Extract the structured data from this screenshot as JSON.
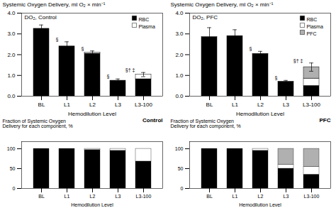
{
  "chart_data": [
    {
      "type": "bar",
      "stacked": true,
      "title": "DO₂, Control",
      "xlabel": "Hemodilution Level",
      "ylabel": "Systemic Oxygen Delivery, ml O₂ × min⁻¹",
      "categories": [
        "BL",
        "L1",
        "L2",
        "L3",
        "L3-100"
      ],
      "series": [
        {
          "name": "RBC",
          "color": "#000000",
          "values": [
            3.25,
            2.4,
            2.05,
            0.75,
            0.82
          ]
        },
        {
          "name": "Plasma",
          "color": "#ffffff",
          "values": [
            0.0,
            0.0,
            0.05,
            0.0,
            0.22
          ]
        }
      ],
      "errors": [
        0.18,
        0.22,
        0.08,
        0.08,
        0.1
      ],
      "annotations": [
        {
          "category": "L1",
          "text": "§"
        },
        {
          "category": "L2",
          "text": "§"
        },
        {
          "category": "L3",
          "text": "§"
        },
        {
          "category": "L3-100",
          "text": "§† ‡"
        }
      ],
      "ylim": [
        0.0,
        4.0
      ],
      "yticks": [
        {
          "value": 0.0,
          "label": "0.0"
        },
        {
          "value": 1.0,
          "label": "1.0"
        },
        {
          "value": 2.0,
          "label": "2.0"
        },
        {
          "value": 3.0,
          "label": "3.0"
        },
        {
          "value": 4.0,
          "label": "4.0"
        }
      ],
      "legend": "upper right",
      "grid": false
    },
    {
      "type": "bar",
      "stacked": true,
      "title": "DO₂, PFC",
      "xlabel": "Hemodilution Level",
      "ylabel": "Systemic Oxygen Delivery, ml O₂ × min⁻¹",
      "categories": [
        "BL",
        "L1",
        "L2",
        "L3",
        "L3-100"
      ],
      "series": [
        {
          "name": "RBC",
          "color": "#000000",
          "values": [
            2.85,
            2.9,
            2.02,
            0.7,
            0.5
          ]
        },
        {
          "name": "Plasma",
          "color": "#ffffff",
          "values": [
            0.0,
            0.0,
            0.02,
            0.0,
            0.35
          ]
        },
        {
          "name": "PFC",
          "color": "#b0b0b0",
          "values": [
            0.0,
            0.0,
            0.0,
            0.0,
            0.55
          ]
        }
      ],
      "errors": [
        0.45,
        0.3,
        0.12,
        0.06,
        0.2
      ],
      "annotations": [
        {
          "category": "L2",
          "text": "§"
        },
        {
          "category": "L3",
          "text": "§"
        },
        {
          "category": "L3-100",
          "text": "§† ‡"
        }
      ],
      "ylim": [
        0.0,
        4.0
      ],
      "yticks": [
        {
          "value": 0.0,
          "label": "0.0"
        },
        {
          "value": 1.0,
          "label": "1.0"
        },
        {
          "value": 2.0,
          "label": "2.0"
        },
        {
          "value": 3.0,
          "label": "3.0"
        },
        {
          "value": 4.0,
          "label": "4.0"
        }
      ],
      "legend": "upper right",
      "grid": false
    },
    {
      "type": "bar",
      "stacked": true,
      "title": "Control",
      "xlabel": "Hemodilution Level",
      "ylabel": "Fraction of Systemic Oxygen\nDelivery for each component, %",
      "categories": [
        "BL",
        "L1",
        "L2",
        "L3",
        "L3-100"
      ],
      "series": [
        {
          "name": "RBC",
          "color": "#000000",
          "values": [
            100,
            100,
            97,
            95,
            68
          ]
        },
        {
          "name": "Plasma",
          "color": "#ffffff",
          "values": [
            0,
            0,
            3,
            5,
            32
          ]
        }
      ],
      "ylim": [
        0,
        118
      ],
      "yticks": [
        0,
        50,
        100
      ],
      "grid": false
    },
    {
      "type": "bar",
      "stacked": true,
      "title": "PFC",
      "xlabel": "Hemodilution Level",
      "ylabel": "Fraction of Systemic Oxygen\nDelivery for each component, %",
      "categories": [
        "BL",
        "L1",
        "L2",
        "L3",
        "L3-100"
      ],
      "series": [
        {
          "name": "RBC",
          "color": "#000000",
          "values": [
            100,
            100,
            95,
            50,
            35
          ]
        },
        {
          "name": "Plasma",
          "color": "#ffffff",
          "values": [
            0,
            0,
            5,
            10,
            20
          ]
        },
        {
          "name": "PFC",
          "color": "#b0b0b0",
          "values": [
            0,
            0,
            0,
            40,
            45
          ]
        }
      ],
      "ylim": [
        0,
        118
      ],
      "yticks": [
        0,
        50,
        100
      ],
      "grid": false
    }
  ]
}
